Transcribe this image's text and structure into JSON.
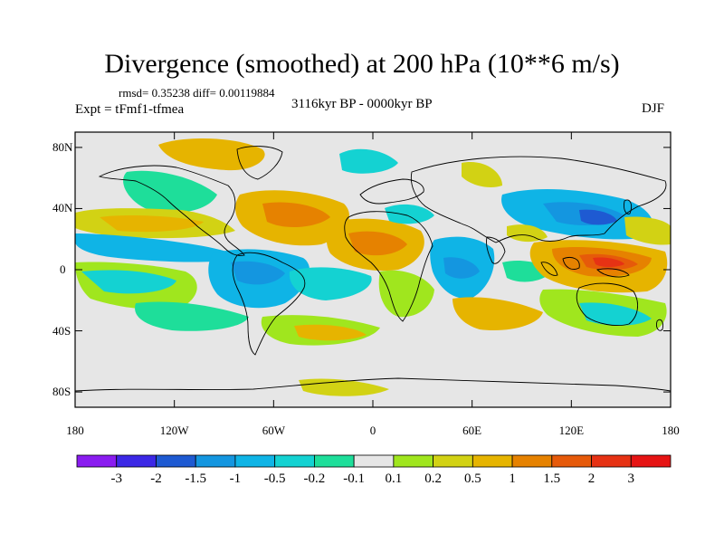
{
  "figure": {
    "title": "Divergence (smoothed) at 200 hPa (10**6 m/s)",
    "stats": "rmsd= 0.35238 diff= 0.00119884",
    "experiment": "Expt = tFmf1-tfmea",
    "period": "3116kyr BP - 0000kyr BP",
    "season": "DJF"
  },
  "axes": {
    "y_ticks": [
      {
        "label": "80N",
        "lat": 80
      },
      {
        "label": "40N",
        "lat": 40
      },
      {
        "label": "0",
        "lat": 0
      },
      {
        "label": "40S",
        "lat": -40
      },
      {
        "label": "80S",
        "lat": -80
      }
    ],
    "x_ticks": [
      {
        "label": "180",
        "lon": -180
      },
      {
        "label": "120W",
        "lon": -120
      },
      {
        "label": "60W",
        "lon": -60
      },
      {
        "label": "0",
        "lon": 0
      },
      {
        "label": "60E",
        "lon": 60
      },
      {
        "label": "120E",
        "lon": 120
      },
      {
        "label": "180",
        "lon": 180
      }
    ],
    "lon_range": [
      -180,
      180
    ],
    "lat_range": [
      -90,
      90
    ]
  },
  "colorbar": {
    "labels": [
      "-3",
      "-2",
      "-1.5",
      "-1",
      "-0.5",
      "-0.2",
      "-0.1",
      "0.1",
      "0.2",
      "0.5",
      "1",
      "1.5",
      "2",
      "3"
    ],
    "colors": [
      "#8a1cf0",
      "#3c28e6",
      "#1e5ad2",
      "#1496e0",
      "#0fb4e6",
      "#14d2d2",
      "#1ede9a",
      "#e6e6e6",
      "#a0e61e",
      "#d2d214",
      "#e6b400",
      "#e68200",
      "#e65a0a",
      "#e63214",
      "#e61414"
    ]
  },
  "map_data": {
    "variable": "Divergence (smoothed) at 200 hPa",
    "units": "10**6 m/s",
    "anomaly_regions": [
      {
        "name": "maritime-continent-positive",
        "level": "1.5"
      },
      {
        "name": "south-america-negative",
        "level": "-0.5"
      },
      {
        "name": "africa-positive",
        "level": "1"
      },
      {
        "name": "indian-ocean-negative",
        "level": "-0.5"
      }
    ]
  },
  "colors": {
    "background": "#ffffff",
    "map_fill": "#e6e6e6",
    "coastline": "#000000"
  }
}
